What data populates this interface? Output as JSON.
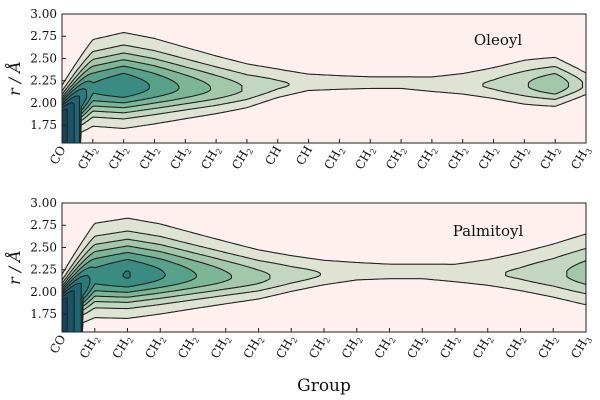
{
  "chart_data": [
    {
      "type": "contour",
      "panel_label": "Oleoyl",
      "ylabel": "r / Å",
      "xlabel": "",
      "ylim": [
        1.55,
        3.0
      ],
      "yticks": [
        "1.75",
        "2.00",
        "2.25",
        "2.50",
        "2.75",
        "3.00"
      ],
      "ytick_values": [
        1.75,
        2.0,
        2.25,
        2.5,
        2.75,
        3.0
      ],
      "categories": [
        {
          "main": "CO",
          "sub": ""
        },
        {
          "main": "CH",
          "sub": "2"
        },
        {
          "main": "CH",
          "sub": "2"
        },
        {
          "main": "CH",
          "sub": "2"
        },
        {
          "main": "CH",
          "sub": "2"
        },
        {
          "main": "CH",
          "sub": "2"
        },
        {
          "main": "CH",
          "sub": "2"
        },
        {
          "main": "CH",
          "sub": ""
        },
        {
          "main": "CH",
          "sub": ""
        },
        {
          "main": "CH",
          "sub": "2"
        },
        {
          "main": "CH",
          "sub": "2"
        },
        {
          "main": "CH",
          "sub": "2"
        },
        {
          "main": "CH",
          "sub": "2"
        },
        {
          "main": "CH",
          "sub": "2"
        },
        {
          "main": "CH",
          "sub": "2"
        },
        {
          "main": "CH",
          "sub": "2"
        },
        {
          "main": "CH",
          "sub": "2"
        },
        {
          "main": "CH",
          "sub": "3"
        }
      ],
      "peak_r": [
        1.85,
        2.16,
        2.18,
        2.18,
        2.17,
        2.16,
        2.16,
        2.2,
        2.22,
        2.22,
        2.22,
        2.22,
        2.2,
        2.2,
        2.2,
        2.2,
        2.2,
        2.2
      ],
      "width": [
        0.14,
        0.25,
        0.27,
        0.25,
        0.22,
        0.19,
        0.16,
        0.12,
        0.08,
        0.075,
        0.07,
        0.07,
        0.08,
        0.1,
        0.13,
        0.16,
        0.16,
        0.1
      ],
      "density": [
        1.0,
        0.55,
        0.62,
        0.52,
        0.42,
        0.33,
        0.24,
        0.17,
        0.13,
        0.11,
        0.1,
        0.1,
        0.11,
        0.13,
        0.17,
        0.24,
        0.34,
        0.14
      ]
    },
    {
      "type": "contour",
      "panel_label": "Palmitoyl",
      "ylabel": "r / Å",
      "xlabel": "Group",
      "ylim": [
        1.55,
        3.0
      ],
      "yticks": [
        "1.75",
        "2.00",
        "2.25",
        "2.50",
        "2.75",
        "3.00"
      ],
      "ytick_values": [
        1.75,
        2.0,
        2.25,
        2.5,
        2.75,
        3.0
      ],
      "categories": [
        {
          "main": "CO",
          "sub": ""
        },
        {
          "main": "CH",
          "sub": "2"
        },
        {
          "main": "CH",
          "sub": "2"
        },
        {
          "main": "CH",
          "sub": "2"
        },
        {
          "main": "CH",
          "sub": "2"
        },
        {
          "main": "CH",
          "sub": "2"
        },
        {
          "main": "CH",
          "sub": "2"
        },
        {
          "main": "CH",
          "sub": "2"
        },
        {
          "main": "CH",
          "sub": "2"
        },
        {
          "main": "CH",
          "sub": "2"
        },
        {
          "main": "CH",
          "sub": "2"
        },
        {
          "main": "CH",
          "sub": "2"
        },
        {
          "main": "CH",
          "sub": "2"
        },
        {
          "main": "CH",
          "sub": "2"
        },
        {
          "main": "CH",
          "sub": "2"
        },
        {
          "main": "CH",
          "sub": "2"
        },
        {
          "main": "CH",
          "sub": "3"
        }
      ],
      "peak_r": [
        1.85,
        2.17,
        2.19,
        2.19,
        2.18,
        2.17,
        2.16,
        2.18,
        2.2,
        2.22,
        2.22,
        2.22,
        2.2,
        2.2,
        2.2,
        2.2,
        2.2
      ],
      "width": [
        0.14,
        0.27,
        0.28,
        0.26,
        0.23,
        0.2,
        0.17,
        0.14,
        0.11,
        0.09,
        0.08,
        0.08,
        0.09,
        0.12,
        0.16,
        0.2,
        0.24
      ],
      "density": [
        1.0,
        0.57,
        0.64,
        0.55,
        0.45,
        0.36,
        0.28,
        0.2,
        0.15,
        0.12,
        0.11,
        0.11,
        0.12,
        0.14,
        0.17,
        0.22,
        0.3
      ]
    }
  ],
  "contour_colors": [
    "#dfe3d4",
    "#c3d6bf",
    "#a2c7a9",
    "#7db597",
    "#57a08a",
    "#3a8c82",
    "#2a797b",
    "#1e6673",
    "#175468",
    "#12445c"
  ],
  "line_color": "#222222",
  "background_color": "#fdf0ef"
}
